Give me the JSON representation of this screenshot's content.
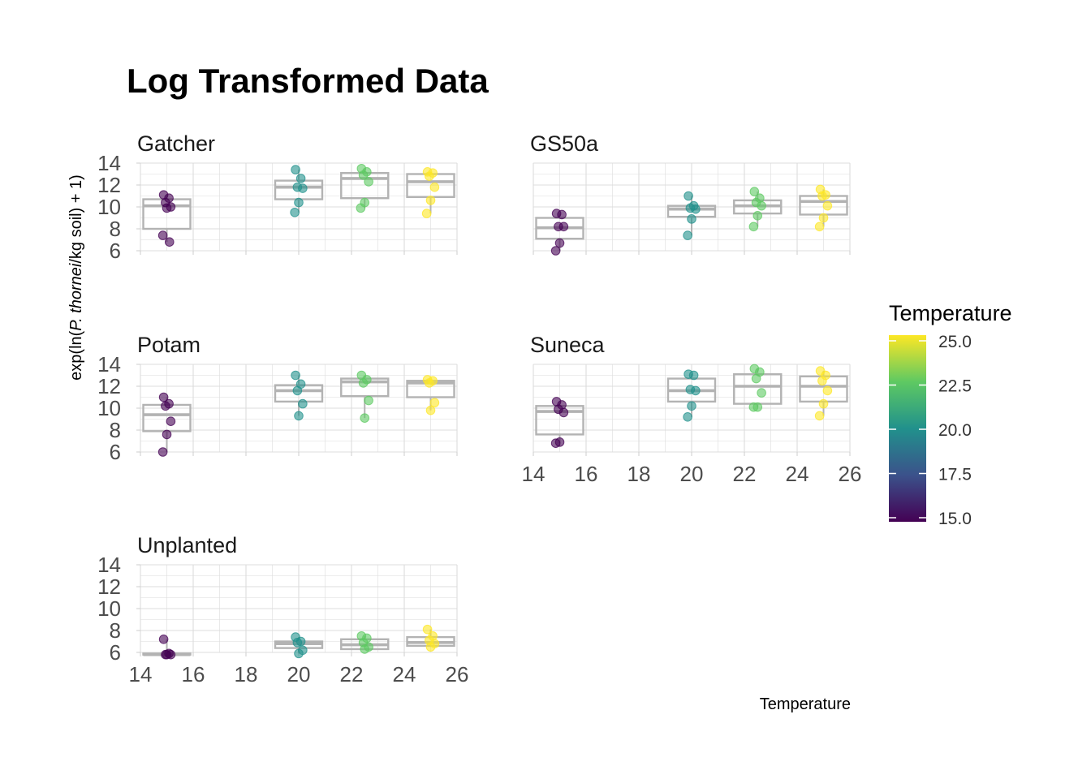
{
  "chart_data": {
    "type": "boxplot",
    "title": "Log Transformed Data",
    "xlabel": "Temperature",
    "ylabel_parts": [
      "exp(ln(",
      "P. thornei",
      "/kg soil) + 1)"
    ],
    "xlim": [
      14,
      26
    ],
    "ylim": [
      6,
      14
    ],
    "x_ticks": [
      14,
      16,
      18,
      20,
      22,
      24,
      26
    ],
    "y_ticks": [
      6,
      8,
      10,
      12,
      14
    ],
    "grid": true,
    "box_color": "#b3b3b3",
    "colorscale": {
      "name": "viridis",
      "title": "Temperature",
      "min": 15.0,
      "max": 25.0,
      "ticks": [
        "15.0",
        "17.5",
        "20.0",
        "22.5",
        "25.0"
      ],
      "colors": [
        "#440154",
        "#3b528b",
        "#21918c",
        "#5ec962",
        "#fde725"
      ]
    },
    "legend_position": "right",
    "panels": [
      {
        "name": "Gatcher",
        "groups": [
          {
            "x": 15,
            "q1": 8.0,
            "median": 10.1,
            "q3": 10.7,
            "points": [
              11.1,
              10.8,
              10.4,
              10.0,
              9.9,
              7.4,
              6.8
            ]
          },
          {
            "x": 20,
            "q1": 10.7,
            "median": 11.8,
            "q3": 12.4,
            "points": [
              13.4,
              12.6,
              11.8,
              11.7,
              10.4,
              9.5
            ]
          },
          {
            "x": 22.5,
            "q1": 10.8,
            "median": 12.6,
            "q3": 13.1,
            "points": [
              13.5,
              13.2,
              12.9,
              12.3,
              10.4,
              9.9
            ]
          },
          {
            "x": 25,
            "q1": 10.9,
            "median": 12.3,
            "q3": 13.0,
            "points": [
              13.2,
              13.1,
              12.8,
              11.8,
              10.6,
              9.4
            ]
          }
        ]
      },
      {
        "name": "GS50a",
        "groups": [
          {
            "x": 15,
            "q1": 7.1,
            "median": 8.1,
            "q3": 9.0,
            "points": [
              9.4,
              9.3,
              8.2,
              8.2,
              6.7,
              6.0
            ]
          },
          {
            "x": 20,
            "q1": 9.1,
            "median": 9.8,
            "q3": 10.1,
            "points": [
              11.0,
              10.1,
              9.9,
              9.8,
              8.9,
              7.4
            ]
          },
          {
            "x": 22.5,
            "q1": 9.4,
            "median": 10.1,
            "q3": 10.6,
            "points": [
              11.4,
              10.8,
              10.4,
              10.1,
              9.2,
              8.2
            ]
          },
          {
            "x": 25,
            "q1": 9.3,
            "median": 10.5,
            "q3": 11.0,
            "points": [
              11.6,
              11.1,
              11.0,
              10.1,
              9.0,
              8.2
            ]
          }
        ]
      },
      {
        "name": "Potam",
        "groups": [
          {
            "x": 15,
            "q1": 7.9,
            "median": 9.4,
            "q3": 10.3,
            "points": [
              11.0,
              10.4,
              10.2,
              8.8,
              7.6,
              6.0
            ]
          },
          {
            "x": 20,
            "q1": 10.6,
            "median": 11.6,
            "q3": 12.1,
            "points": [
              13.0,
              12.2,
              11.6,
              10.4,
              9.3
            ]
          },
          {
            "x": 22.5,
            "q1": 11.1,
            "median": 12.4,
            "q3": 12.7,
            "points": [
              13.0,
              12.6,
              12.3,
              10.7,
              9.1
            ]
          },
          {
            "x": 25,
            "q1": 11.0,
            "median": 12.3,
            "q3": 12.5,
            "points": [
              12.6,
              12.5,
              12.3,
              10.5,
              9.8
            ]
          }
        ]
      },
      {
        "name": "Suneca",
        "groups": [
          {
            "x": 15,
            "q1": 7.6,
            "median": 9.7,
            "q3": 10.2,
            "points": [
              10.6,
              10.3,
              9.9,
              9.6,
              6.9,
              6.8
            ]
          },
          {
            "x": 20,
            "q1": 10.6,
            "median": 11.6,
            "q3": 12.7,
            "points": [
              13.1,
              13.0,
              11.7,
              11.6,
              10.2,
              9.2
            ]
          },
          {
            "x": 22.5,
            "q1": 10.4,
            "median": 12.0,
            "q3": 13.1,
            "points": [
              13.6,
              13.3,
              12.7,
              11.4,
              10.1,
              10.1
            ]
          },
          {
            "x": 25,
            "q1": 10.6,
            "median": 12.0,
            "q3": 12.9,
            "points": [
              13.4,
              13.0,
              12.5,
              11.6,
              10.4,
              9.3
            ]
          }
        ]
      },
      {
        "name": "Unplanted",
        "groups": [
          {
            "x": 15,
            "q1": 5.8,
            "median": 5.8,
            "q3": 5.9,
            "points": [
              7.2,
              5.9,
              5.8,
              5.8,
              5.8
            ]
          },
          {
            "x": 20,
            "q1": 6.4,
            "median": 6.8,
            "q3": 7.0,
            "points": [
              7.4,
              7.0,
              6.9,
              6.2,
              5.9
            ]
          },
          {
            "x": 22.5,
            "q1": 6.3,
            "median": 6.7,
            "q3": 7.2,
            "points": [
              7.5,
              7.3,
              6.9,
              6.5,
              6.3
            ]
          },
          {
            "x": 25,
            "q1": 6.6,
            "median": 6.9,
            "q3": 7.4,
            "points": [
              8.1,
              7.5,
              7.1,
              6.8,
              6.5
            ]
          }
        ]
      }
    ]
  }
}
